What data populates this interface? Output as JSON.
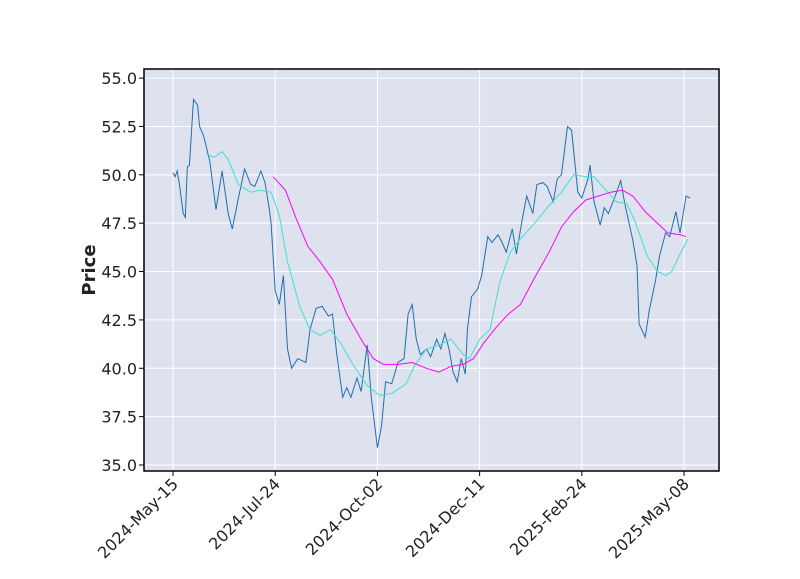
{
  "chart_data": {
    "type": "line",
    "y_label": "Price",
    "xlim": [
      -14.2,
      267.1
    ],
    "xticks": [
      {
        "value": 0,
        "label": "2024-May-15"
      },
      {
        "value": 50,
        "label": "2024-Jul-24"
      },
      {
        "value": 100,
        "label": "2024-Oct-02"
      },
      {
        "value": 150,
        "label": "2024-Dec-11"
      },
      {
        "value": 200,
        "label": "2025-Feb-24"
      },
      {
        "value": 250,
        "label": "2025-May-08"
      }
    ],
    "ylim": [
      34.69,
      55.47
    ],
    "yticks": [
      {
        "value": 35,
        "label": "35.0"
      },
      37.5,
      {
        "value": 40,
        "label": "40.0"
      },
      42.5,
      {
        "value": 45,
        "label": "45.0"
      },
      47.5,
      {
        "value": 50,
        "label": "50.0"
      },
      52.5,
      {
        "value": 55,
        "label": "55.0"
      }
    ],
    "grid": true,
    "series": [
      {
        "color": "#1f6fb0",
        "x": [
          0,
          1,
          2,
          3,
          5,
          6,
          7,
          8,
          10,
          12,
          13,
          15,
          18,
          21,
          24,
          27,
          29,
          32,
          35,
          38,
          40,
          43,
          45,
          47,
          48,
          50,
          52,
          54,
          56,
          58,
          61,
          65,
          67,
          70,
          73,
          76,
          78,
          80,
          83,
          85,
          87,
          90,
          92,
          95,
          97,
          100,
          102,
          104,
          107,
          110,
          113,
          115,
          117,
          119,
          121,
          124,
          126,
          129,
          131,
          133,
          135,
          137,
          139,
          141,
          143,
          144,
          146,
          149,
          151,
          154,
          156,
          159,
          161,
          163,
          166,
          168,
          171,
          173,
          176,
          178,
          181,
          183,
          186,
          188,
          190,
          193,
          195,
          198,
          200,
          203,
          204,
          206,
          209,
          211,
          213,
          216,
          219,
          221,
          225,
          227,
          228,
          231,
          233,
          236,
          238,
          241,
          243,
          246,
          248,
          251,
          253
        ],
        "values": [
          50.1,
          49.9,
          50.2,
          49.6,
          48.0,
          47.8,
          50.4,
          50.5,
          53.9,
          53.6,
          52.5,
          52.0,
          50.7,
          48.2,
          50.2,
          48.0,
          47.2,
          48.8,
          50.3,
          49.5,
          49.4,
          50.2,
          49.6,
          48.3,
          47.5,
          44.0,
          43.3,
          44.8,
          41.0,
          40.0,
          40.5,
          40.3,
          42.0,
          43.1,
          43.2,
          42.7,
          42.8,
          40.8,
          38.5,
          39.0,
          38.5,
          39.5,
          38.8,
          41.2,
          38.5,
          35.9,
          37.0,
          39.3,
          39.2,
          40.3,
          40.5,
          42.8,
          43.3,
          41.5,
          40.7,
          41.0,
          40.6,
          41.5,
          41.0,
          41.8,
          41.0,
          39.8,
          39.3,
          40.5,
          39.7,
          42.0,
          43.7,
          44.1,
          44.8,
          46.8,
          46.5,
          46.9,
          46.5,
          46.0,
          47.2,
          45.9,
          47.8,
          48.9,
          48.0,
          49.5,
          49.6,
          49.4,
          48.6,
          49.8,
          50.0,
          52.5,
          52.3,
          49.1,
          48.8,
          49.8,
          50.5,
          48.6,
          47.4,
          48.3,
          48.0,
          48.8,
          49.7,
          48.5,
          46.6,
          45.3,
          42.3,
          41.6,
          43.0,
          44.5,
          45.8,
          47.0,
          46.8,
          48.1,
          47.0,
          48.9,
          48.8
        ]
      },
      {
        "color": "#40e0d0",
        "x": [
          16,
          20,
          24,
          27,
          32,
          38,
          42,
          48,
          52,
          56,
          62,
          67,
          72,
          77,
          82,
          88,
          95,
          101,
          107,
          114,
          118,
          124,
          130,
          136,
          142,
          145,
          150,
          155,
          160,
          165,
          170,
          177,
          183,
          190,
          196,
          202,
          206,
          211,
          217,
          222,
          226,
          232,
          237,
          241,
          244,
          248,
          252
        ],
        "values": [
          51.1,
          50.9,
          51.2,
          50.8,
          49.5,
          49.1,
          49.2,
          49.1,
          47.9,
          45.5,
          43.2,
          42.0,
          41.7,
          42.0,
          41.3,
          40.2,
          39.1,
          38.6,
          38.7,
          39.2,
          40.1,
          41.0,
          41.2,
          41.5,
          40.7,
          40.5,
          41.5,
          42.0,
          44.5,
          46.0,
          46.7,
          47.5,
          48.3,
          49.1,
          50.0,
          49.9,
          49.9,
          49.3,
          48.6,
          48.5,
          47.6,
          45.8,
          45.0,
          44.8,
          45.0,
          45.9,
          46.7
        ]
      },
      {
        "color": "#ff00ff",
        "x": [
          49,
          55,
          60,
          66,
          72,
          78,
          85,
          92,
          98,
          103,
          110,
          117,
          124,
          130,
          136,
          142,
          147,
          152,
          158,
          164,
          170,
          177,
          184,
          190,
          196,
          202,
          208,
          214,
          220,
          225,
          231,
          237,
          242,
          248,
          251
        ],
        "values": [
          49.9,
          49.2,
          47.8,
          46.3,
          45.5,
          44.6,
          42.8,
          41.5,
          40.5,
          40.2,
          40.2,
          40.3,
          40.0,
          39.8,
          40.1,
          40.2,
          40.5,
          41.3,
          42.1,
          42.8,
          43.3,
          44.7,
          46.0,
          47.3,
          48.1,
          48.7,
          48.9,
          49.1,
          49.2,
          48.9,
          48.1,
          47.5,
          47.0,
          46.9,
          46.8
        ]
      }
    ]
  }
}
